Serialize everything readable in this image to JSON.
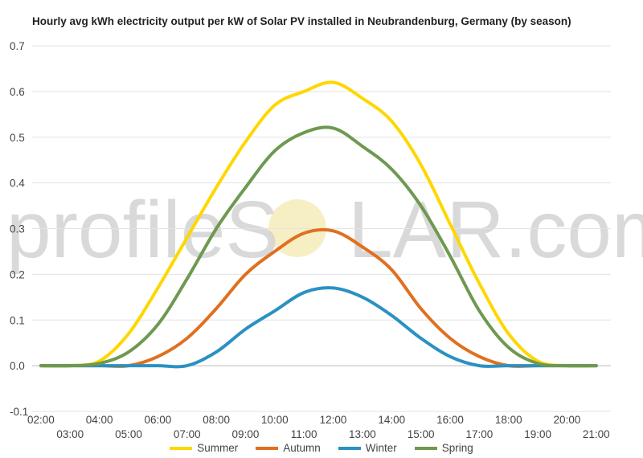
{
  "chart_data": {
    "type": "line",
    "title": "Hourly avg kWh electricity output per kW of Solar PV installed in Neubrandenburg, Germany (by season)",
    "xlabel": "",
    "ylabel": "",
    "ylim": [
      -0.1,
      0.7
    ],
    "yticks": [
      -0.1,
      0.0,
      0.1,
      0.2,
      0.3,
      0.4,
      0.5,
      0.6,
      0.7
    ],
    "ytick_labels": [
      "-0.1",
      "0.0",
      "0.1",
      "0.2",
      "0.3",
      "0.4",
      "0.5",
      "0.6",
      "0.7"
    ],
    "x_tick_labels": [
      "02:00",
      "03:00",
      "04:00",
      "05:00",
      "06:00",
      "07:00",
      "08:00",
      "09:00",
      "10:00",
      "11:00",
      "12:00",
      "13:00",
      "14:00",
      "15:00",
      "16:00",
      "17:00",
      "18:00",
      "19:00",
      "20:00",
      "21:00"
    ],
    "x_hours": [
      2,
      3,
      4,
      5,
      6,
      7,
      8,
      9,
      10,
      11,
      12,
      13,
      14,
      15,
      16,
      17,
      18,
      19,
      20,
      21
    ],
    "grid": true,
    "legend_position": "bottom",
    "series": [
      {
        "name": "Summer",
        "color": "#FFD700",
        "values": [
          0.0,
          0.0,
          0.01,
          0.07,
          0.17,
          0.28,
          0.39,
          0.49,
          0.57,
          0.6,
          0.62,
          0.585,
          0.535,
          0.44,
          0.31,
          0.18,
          0.07,
          0.01,
          0.0,
          0.0
        ]
      },
      {
        "name": "Autumn",
        "color": "#E07020",
        "values": [
          0.0,
          0.0,
          0.0,
          0.0,
          0.02,
          0.06,
          0.125,
          0.2,
          0.25,
          0.29,
          0.295,
          0.26,
          0.21,
          0.125,
          0.06,
          0.02,
          0.0,
          0.0,
          0.0,
          0.0
        ]
      },
      {
        "name": "Winter",
        "color": "#2A91C2",
        "values": [
          0.0,
          0.0,
          0.0,
          0.0,
          0.0,
          0.0,
          0.03,
          0.08,
          0.12,
          0.16,
          0.17,
          0.15,
          0.11,
          0.06,
          0.02,
          0.0,
          0.0,
          0.0,
          0.0,
          0.0
        ]
      },
      {
        "name": "Spring",
        "color": "#6E9950",
        "values": [
          0.0,
          0.0,
          0.005,
          0.03,
          0.09,
          0.19,
          0.3,
          0.39,
          0.47,
          0.51,
          0.52,
          0.48,
          0.43,
          0.35,
          0.24,
          0.12,
          0.04,
          0.005,
          0.0,
          0.0
        ]
      }
    ]
  },
  "watermark": {
    "text_pre": "profileS",
    "text_post": "LAR.com"
  }
}
